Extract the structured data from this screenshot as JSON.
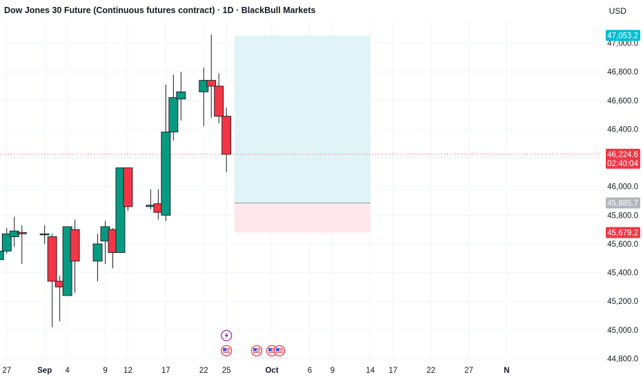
{
  "header": {
    "title": "Dow Jones 30 Future (Continuous futures contract) · 1D · BlackBull Markets",
    "currency": "USD"
  },
  "price_tags": {
    "target": "47,053.2",
    "current": "46,224.6",
    "countdown": "02:40:04",
    "entry": "45,885.7",
    "stop": "45,679.2"
  },
  "colors": {
    "up": "#089981",
    "down": "#F23645",
    "target_zone": "#E0F4F7",
    "stop_zone": "#FDE7EA",
    "target_tag": "#00BCD4",
    "entry_tag": "#B2B5BE",
    "current_line": "#F23645"
  },
  "icons": [
    "lightning-event-icon",
    "us-flag-icon",
    "us-flag-icon",
    "us-flag-icon",
    "us-flag-icon"
  ],
  "chart_data": {
    "type": "candlestick",
    "title": "Dow Jones 30 Future (Continuous futures contract) · 1D · BlackBull Markets",
    "ylim": [
      44800,
      47150
    ],
    "y_ticks": [
      {
        "value": 44800,
        "label": "44,800.0"
      },
      {
        "value": 45000,
        "label": "45,000.0"
      },
      {
        "value": 45200,
        "label": "45,200.0"
      },
      {
        "value": 45400,
        "label": "45,400.0"
      },
      {
        "value": 45600,
        "label": "45,600.0"
      },
      {
        "value": 45800,
        "label": "45,800.0"
      },
      {
        "value": 46000,
        "label": "46,000.0"
      },
      {
        "value": 46200,
        "label": "46,200.0"
      },
      {
        "value": 46400,
        "label": "46,400.0"
      },
      {
        "value": 46600,
        "label": "46,600.0"
      },
      {
        "value": 46800,
        "label": "46,800.0"
      },
      {
        "value": 47000,
        "label": "47,000.0"
      }
    ],
    "x_ticks": [
      {
        "date": "2025-08-27",
        "label": "27",
        "bold": false
      },
      {
        "date": "2025-09-01",
        "label": "Sep",
        "bold": true
      },
      {
        "date": "2025-09-04",
        "label": "4",
        "bold": false
      },
      {
        "date": "2025-09-09",
        "label": "9",
        "bold": false
      },
      {
        "date": "2025-09-12",
        "label": "12",
        "bold": false
      },
      {
        "date": "2025-09-17",
        "label": "17",
        "bold": false
      },
      {
        "date": "2025-09-22",
        "label": "22",
        "bold": false
      },
      {
        "date": "2025-09-25",
        "label": "25",
        "bold": false
      },
      {
        "date": "2025-10-01",
        "label": "Oct",
        "bold": true
      },
      {
        "date": "2025-10-06",
        "label": "6",
        "bold": false
      },
      {
        "date": "2025-10-09",
        "label": "9",
        "bold": false
      },
      {
        "date": "2025-10-14",
        "label": "14",
        "bold": false
      },
      {
        "date": "2025-10-17",
        "label": "17",
        "bold": false
      },
      {
        "date": "2025-10-22",
        "label": "22",
        "bold": false
      },
      {
        "date": "2025-10-27",
        "label": "27",
        "bold": false
      },
      {
        "date": "2025-11-01",
        "label": "N",
        "bold": true
      }
    ],
    "candles": [
      {
        "date": "2025-08-26",
        "o": 45490,
        "h": 45560,
        "l": 45410,
        "c": 45550
      },
      {
        "date": "2025-08-27",
        "o": 45550,
        "h": 45710,
        "l": 45530,
        "c": 45670
      },
      {
        "date": "2025-08-28",
        "o": 45650,
        "h": 45790,
        "l": 45580,
        "c": 45690
      },
      {
        "date": "2025-08-29",
        "o": 45680,
        "h": 45730,
        "l": 45460,
        "c": 45670
      },
      {
        "date": "2025-09-01",
        "o": 45670,
        "h": 45730,
        "l": 45600,
        "c": 45670
      },
      {
        "date": "2025-09-02",
        "o": 45650,
        "h": 45670,
        "l": 45020,
        "c": 45340
      },
      {
        "date": "2025-09-03",
        "o": 45340,
        "h": 45380,
        "l": 45060,
        "c": 45300
      },
      {
        "date": "2025-09-04",
        "o": 45240,
        "h": 45720,
        "l": 45240,
        "c": 45720
      },
      {
        "date": "2025-09-05",
        "o": 45700,
        "h": 45770,
        "l": 45260,
        "c": 45480
      },
      {
        "date": "2025-09-08",
        "o": 45480,
        "h": 45670,
        "l": 45340,
        "c": 45600
      },
      {
        "date": "2025-09-09",
        "o": 45620,
        "h": 45760,
        "l": 45460,
        "c": 45720
      },
      {
        "date": "2025-09-10",
        "o": 45700,
        "h": 45710,
        "l": 45430,
        "c": 45540
      },
      {
        "date": "2025-09-11",
        "o": 45540,
        "h": 46130,
        "l": 45540,
        "c": 46130
      },
      {
        "date": "2025-09-12",
        "o": 46130,
        "h": 46130,
        "l": 45830,
        "c": 45860
      },
      {
        "date": "2025-09-15",
        "o": 45860,
        "h": 45980,
        "l": 45840,
        "c": 45870
      },
      {
        "date": "2025-09-16",
        "o": 45880,
        "h": 45980,
        "l": 45770,
        "c": 45820
      },
      {
        "date": "2025-09-17",
        "o": 45800,
        "h": 46710,
        "l": 45760,
        "c": 46380
      },
      {
        "date": "2025-09-18",
        "o": 46380,
        "h": 46780,
        "l": 46320,
        "c": 46620
      },
      {
        "date": "2025-09-19",
        "o": 46610,
        "h": 46800,
        "l": 46460,
        "c": 46660
      },
      {
        "date": "2025-09-22",
        "o": 46660,
        "h": 46830,
        "l": 46420,
        "c": 46740
      },
      {
        "date": "2025-09-23",
        "o": 46740,
        "h": 47060,
        "l": 46480,
        "c": 46700
      },
      {
        "date": "2025-09-24",
        "o": 46700,
        "h": 46790,
        "l": 46440,
        "c": 46490
      },
      {
        "date": "2025-09-25",
        "o": 46490,
        "h": 46550,
        "l": 46100,
        "c": 46224.6
      }
    ],
    "position": {
      "start_date": "2025-09-26",
      "end_date": "2025-10-14",
      "target": 47053.2,
      "entry": 45885.7,
      "stop": 45679.2
    },
    "current_price": 46224.6
  }
}
